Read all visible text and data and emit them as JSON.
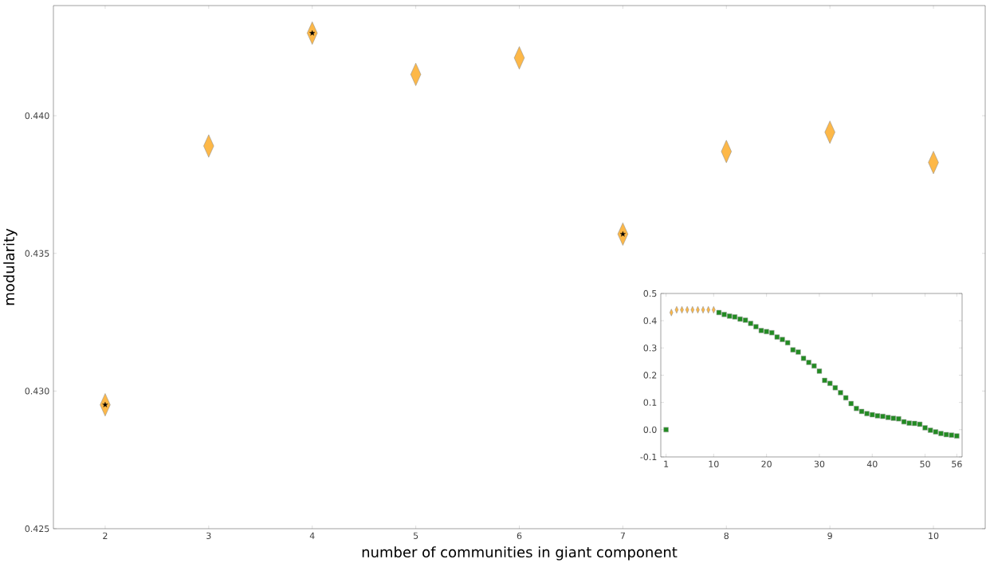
{
  "chart_data": [
    {
      "type": "scatter",
      "xlabel": "number of communities in giant component",
      "ylabel": "modularity",
      "xlim": [
        1.5,
        10.5
      ],
      "ylim": [
        0.425,
        0.444
      ],
      "xticks": [
        2,
        3,
        4,
        5,
        6,
        7,
        8,
        9,
        10
      ],
      "yticks": [
        0.425,
        {
          "value": 0.43,
          "label": "0.430"
        },
        0.435,
        {
          "value": 0.44,
          "label": "0.440"
        }
      ],
      "series": [
        {
          "color": "#fdb848",
          "marker": "diamond",
          "x": [
            2,
            3,
            4,
            5,
            6,
            7,
            8,
            9,
            10
          ],
          "values": [
            0.4295,
            0.4389,
            0.443,
            0.4415,
            0.4421,
            0.4357,
            0.4387,
            0.4394,
            0.4383
          ]
        },
        {
          "color": "#000000",
          "marker": "star",
          "x": [
            2,
            4,
            7
          ],
          "values": [
            0.4295,
            0.443,
            0.4357
          ]
        }
      ]
    },
    {
      "type": "scatter",
      "xlim": [
        0,
        57
      ],
      "ylim": [
        -0.1,
        0.5
      ],
      "xticks": [
        1,
        10,
        20,
        30,
        40,
        50,
        56
      ],
      "yticks": [
        -0.1,
        {
          "value": 0,
          "label": "0.0"
        },
        0.1,
        0.2,
        0.3,
        0.4,
        0.5
      ],
      "series": [
        {
          "color": "#fdb848",
          "marker": "diamond",
          "x": [
            2,
            3,
            4,
            5,
            6,
            7,
            8,
            9,
            10
          ],
          "values": [
            0.43,
            0.44,
            0.44,
            0.44,
            0.44,
            0.44,
            0.44,
            0.44,
            0.44
          ]
        },
        {
          "color": "#228b22",
          "marker": "square",
          "x": [
            1,
            11,
            12,
            13,
            14,
            15,
            16,
            17,
            18,
            19,
            20,
            21,
            22,
            23,
            24,
            25,
            26,
            27,
            28,
            29,
            30,
            31,
            32,
            33,
            34,
            35,
            36,
            37,
            38,
            39,
            40,
            41,
            42,
            43,
            44,
            45,
            46,
            47,
            48,
            49,
            50,
            51,
            52,
            53,
            54,
            55,
            56
          ],
          "values": [
            0.0,
            0.43,
            0.423,
            0.417,
            0.414,
            0.406,
            0.402,
            0.39,
            0.378,
            0.364,
            0.36,
            0.356,
            0.34,
            0.331,
            0.319,
            0.293,
            0.285,
            0.262,
            0.247,
            0.234,
            0.215,
            0.181,
            0.17,
            0.154,
            0.136,
            0.117,
            0.096,
            0.078,
            0.067,
            0.059,
            0.055,
            0.051,
            0.049,
            0.045,
            0.042,
            0.04,
            0.029,
            0.024,
            0.023,
            0.02,
            0.007,
            -0.002,
            -0.008,
            -0.014,
            -0.018,
            -0.02,
            -0.023
          ]
        }
      ]
    }
  ]
}
